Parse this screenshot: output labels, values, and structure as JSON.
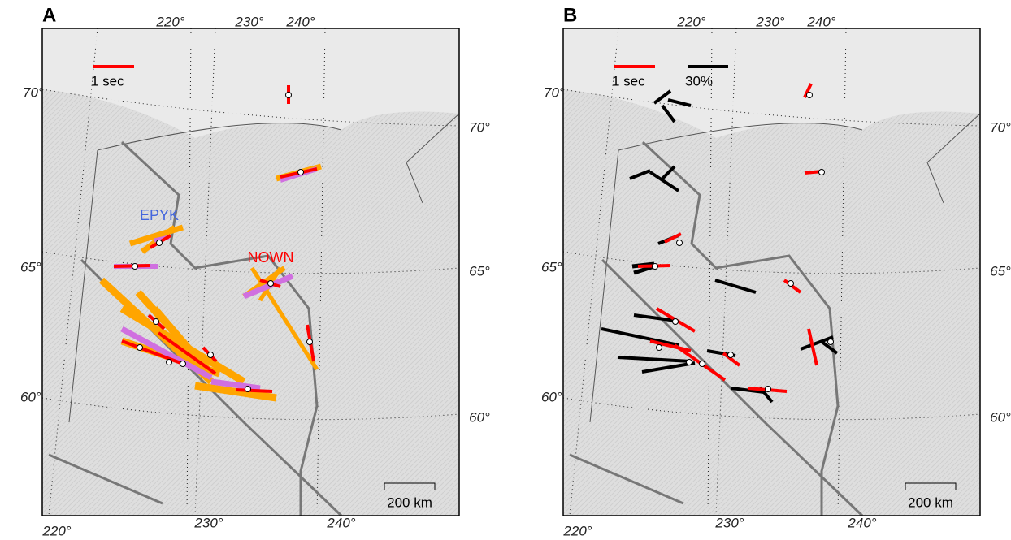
{
  "panels": [
    {
      "label": "A",
      "top_lon": [
        "220°",
        "230°",
        "240°"
      ],
      "left_lat": [
        "70°",
        "65°",
        "60°"
      ],
      "right_lat": [
        "70°",
        "65°",
        "60°"
      ],
      "bottom_lon": [
        "220°",
        "230°",
        "240°"
      ],
      "legend": [
        "1 sec"
      ],
      "stations": [
        "EPYK",
        "NOWN"
      ],
      "scale": "200 km"
    },
    {
      "label": "B",
      "top_lon": [
        "220°",
        "230°",
        "240°"
      ],
      "left_lat": [
        "70°",
        "65°",
        "60°"
      ],
      "right_lat": [
        "70°",
        "65°",
        "60°"
      ],
      "bottom_lon": [
        "220°",
        "230°",
        "240°"
      ],
      "legend": [
        "1 sec",
        "30%"
      ],
      "stations": [],
      "scale": "200 km"
    }
  ]
}
